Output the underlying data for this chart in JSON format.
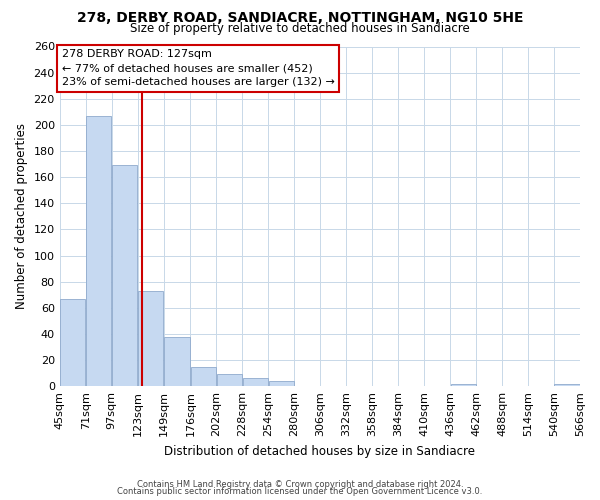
{
  "title1": "278, DERBY ROAD, SANDIACRE, NOTTINGHAM, NG10 5HE",
  "title2": "Size of property relative to detached houses in Sandiacre",
  "xlabel": "Distribution of detached houses by size in Sandiacre",
  "ylabel": "Number of detached properties",
  "bar_left_edges": [
    45,
    71,
    97,
    123,
    149,
    176,
    202,
    228,
    254,
    280,
    306,
    332,
    358,
    384,
    410,
    436,
    462,
    488,
    514,
    540
  ],
  "bar_widths": [
    26,
    26,
    26,
    26,
    27,
    26,
    26,
    26,
    26,
    26,
    26,
    26,
    26,
    26,
    26,
    26,
    26,
    26,
    26,
    26
  ],
  "bar_heights": [
    67,
    207,
    169,
    73,
    38,
    15,
    9,
    6,
    4,
    0,
    0,
    0,
    0,
    0,
    0,
    2,
    0,
    0,
    0,
    2
  ],
  "bar_color": "#c6d9f1",
  "bar_edge_color": "#8faacc",
  "tick_labels": [
    "45sqm",
    "71sqm",
    "97sqm",
    "123sqm",
    "149sqm",
    "176sqm",
    "202sqm",
    "228sqm",
    "254sqm",
    "280sqm",
    "306sqm",
    "332sqm",
    "358sqm",
    "384sqm",
    "410sqm",
    "436sqm",
    "462sqm",
    "488sqm",
    "514sqm",
    "540sqm",
    "566sqm"
  ],
  "property_line_x": 127,
  "property_line_color": "#cc0000",
  "annotation_title": "278 DERBY ROAD: 127sqm",
  "annotation_line1": "← 77% of detached houses are smaller (452)",
  "annotation_line2": "23% of semi-detached houses are larger (132) →",
  "ylim": [
    0,
    260
  ],
  "xlim": [
    45,
    566
  ],
  "yticks": [
    0,
    20,
    40,
    60,
    80,
    100,
    120,
    140,
    160,
    180,
    200,
    220,
    240,
    260
  ],
  "grid_color": "#c8d8e8",
  "footnote1": "Contains HM Land Registry data © Crown copyright and database right 2024.",
  "footnote2": "Contains public sector information licensed under the Open Government Licence v3.0.",
  "background_color": "#ffffff"
}
